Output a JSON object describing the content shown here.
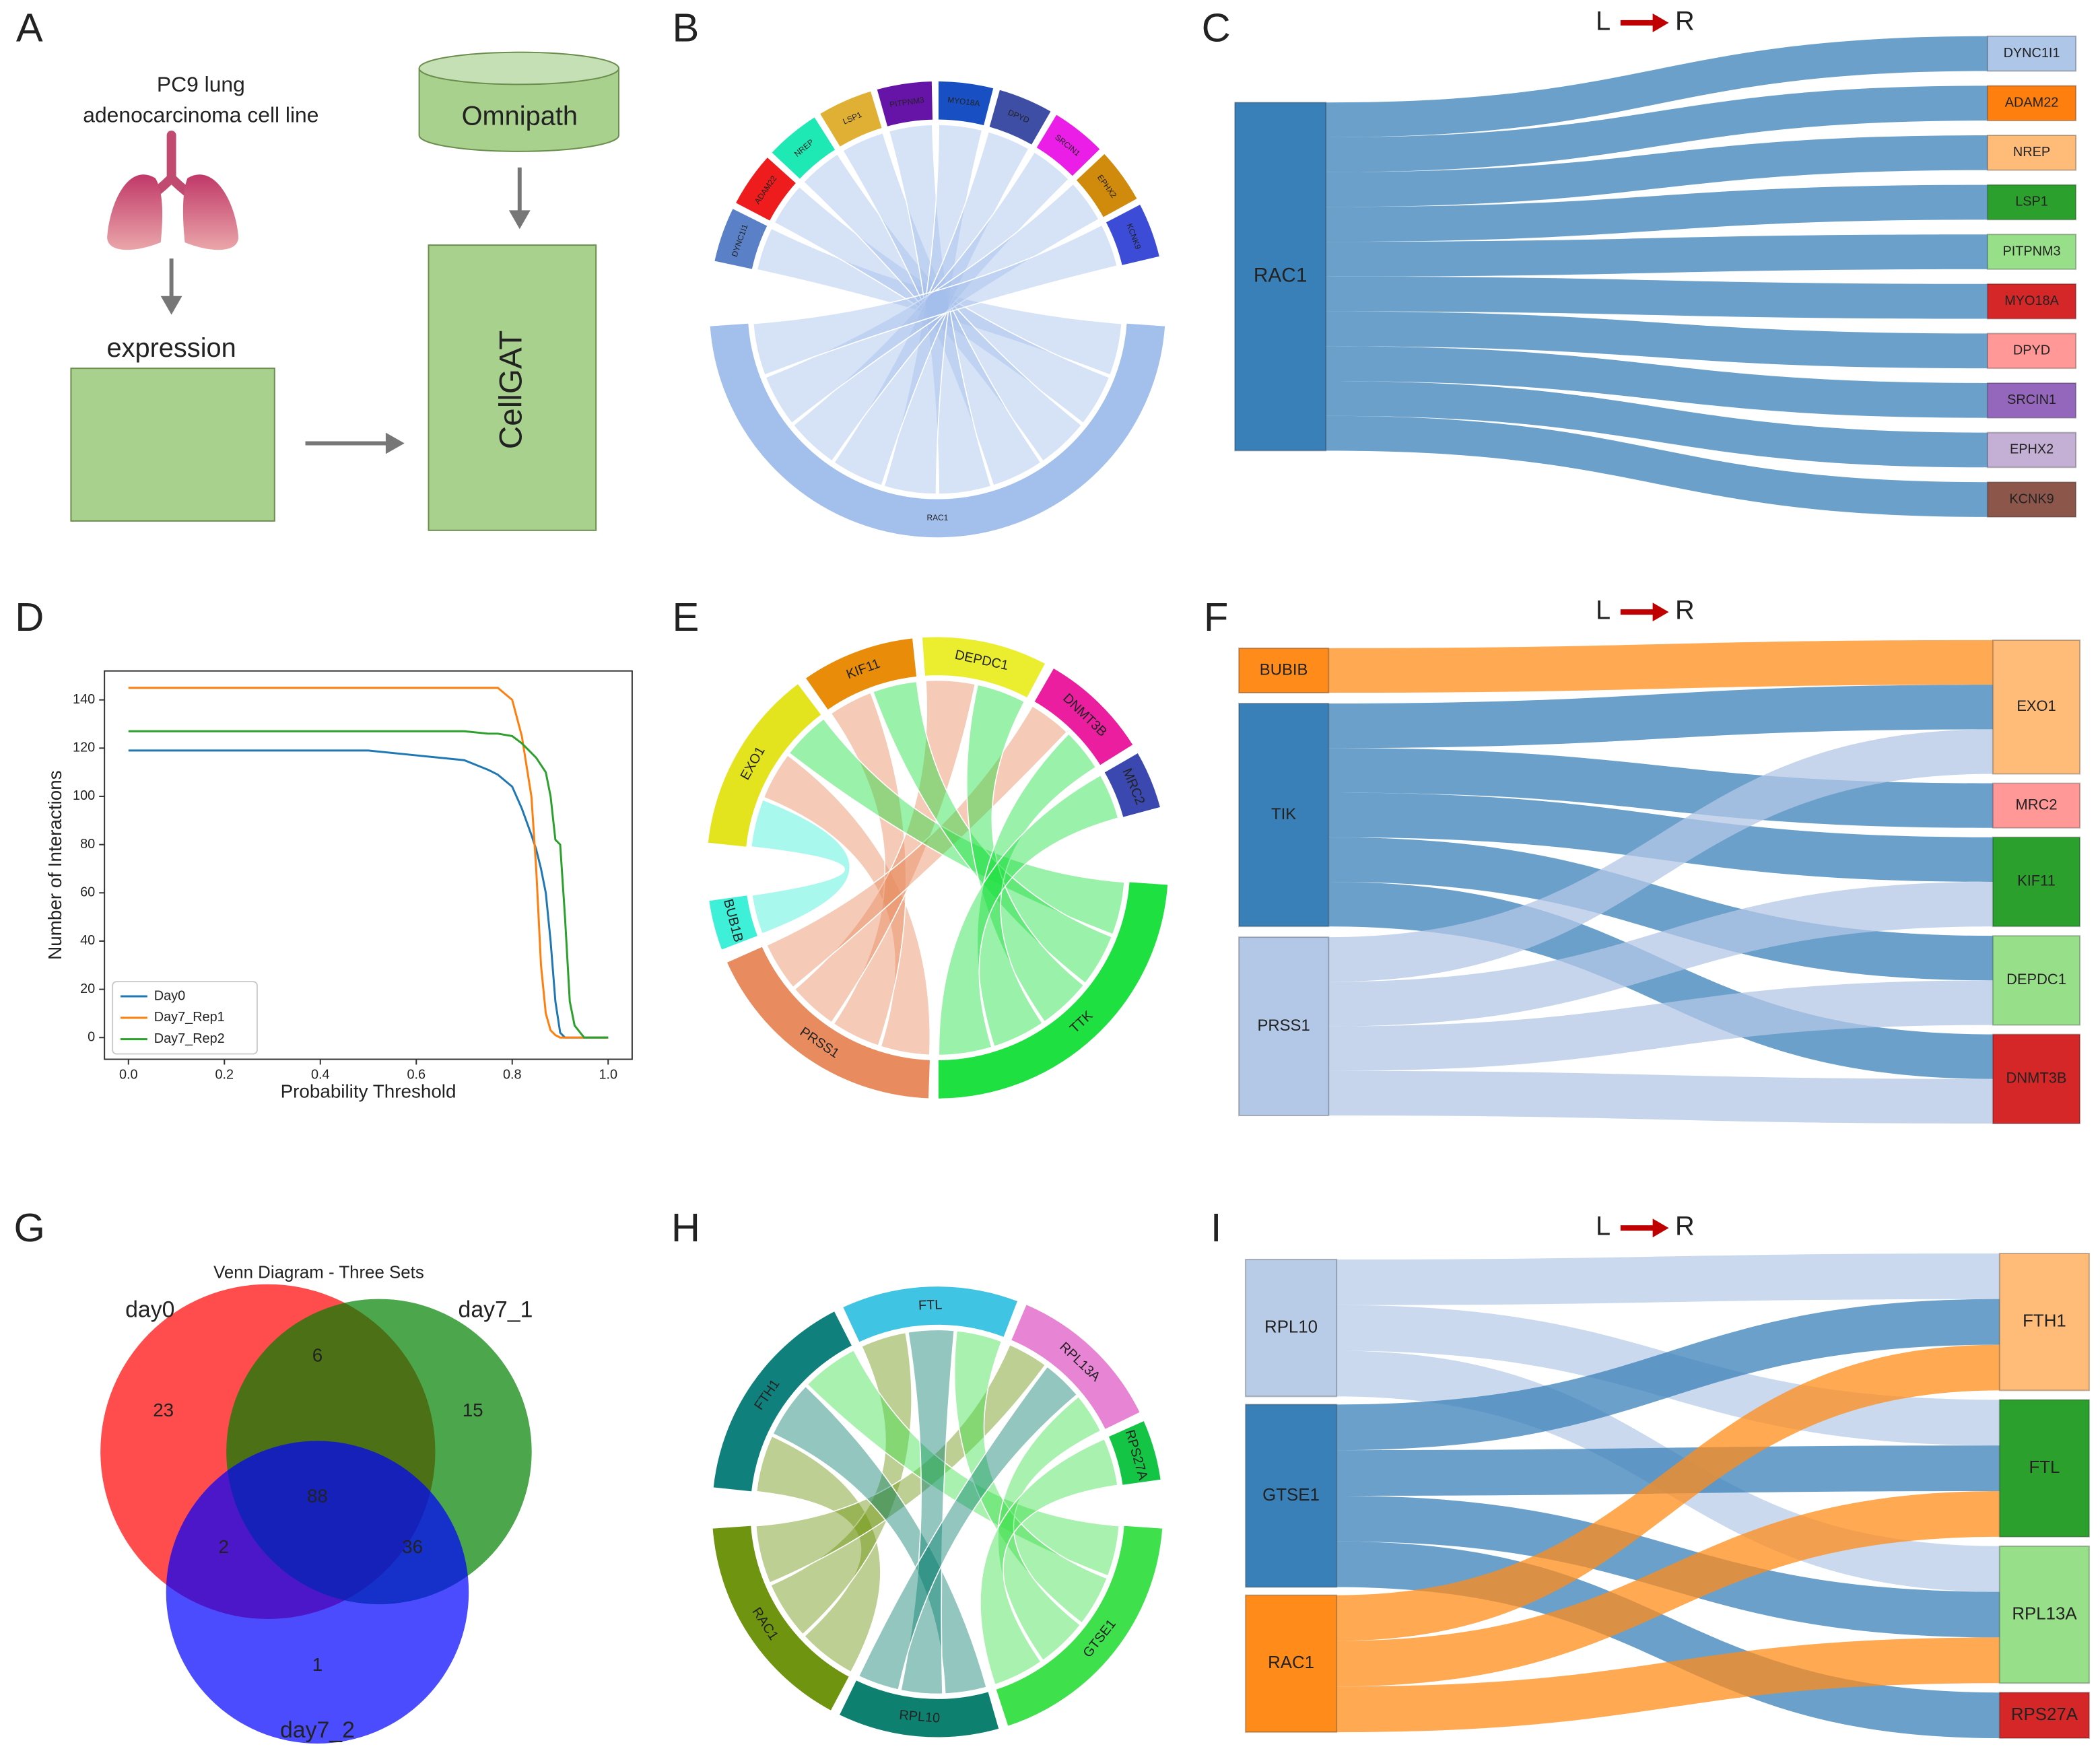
{
  "panel_labels": [
    "A",
    "B",
    "C",
    "D",
    "E",
    "F",
    "G",
    "H",
    "I"
  ],
  "workflow": {
    "cell_line": [
      "PC9 lung",
      "adenocarcinoma cell line"
    ],
    "expression_label": "expression",
    "database": "Omnipath",
    "model": "CellGAT"
  },
  "direction": {
    "left": "L",
    "right": "R"
  },
  "chart_data": [
    {
      "type": "chord",
      "nodes": [
        {
          "name": "RAC1",
          "color": "#a3bfec"
        },
        {
          "name": "DYNC1I1",
          "color": "#5a80c8"
        },
        {
          "name": "ADAM22",
          "color": "#ee1c1c"
        },
        {
          "name": "NREP",
          "color": "#1ee8b4"
        },
        {
          "name": "LSP1",
          "color": "#e0b034"
        },
        {
          "name": "PITPNM3",
          "color": "#6614a8"
        },
        {
          "name": "MYO18A",
          "color": "#1850c4"
        },
        {
          "name": "DPYD",
          "color": "#3e4ea4"
        },
        {
          "name": "SRCIN1",
          "color": "#ea1ee6"
        },
        {
          "name": "EPHX2",
          "color": "#d08a0c"
        },
        {
          "name": "KCNK9",
          "color": "#3c4cd6"
        }
      ],
      "links": [
        {
          "source": "RAC1",
          "target": "DYNC1I1"
        },
        {
          "source": "RAC1",
          "target": "ADAM22"
        },
        {
          "source": "RAC1",
          "target": "NREP"
        },
        {
          "source": "RAC1",
          "target": "LSP1"
        },
        {
          "source": "RAC1",
          "target": "PITPNM3"
        },
        {
          "source": "RAC1",
          "target": "MYO18A"
        },
        {
          "source": "RAC1",
          "target": "DPYD"
        },
        {
          "source": "RAC1",
          "target": "SRCIN1"
        },
        {
          "source": "RAC1",
          "target": "EPHX2"
        },
        {
          "source": "RAC1",
          "target": "KCNK9"
        }
      ]
    },
    {
      "type": "sankey",
      "nodes": [
        {
          "name": "RAC1",
          "color": "#3a80b8"
        },
        {
          "name": "DYNC1I1",
          "color": "#aec7e8"
        },
        {
          "name": "ADAM22",
          "color": "#ff7f0e"
        },
        {
          "name": "NREP",
          "color": "#ffbb78"
        },
        {
          "name": "LSP1",
          "color": "#2ca02c"
        },
        {
          "name": "PITPNM3",
          "color": "#98df8a"
        },
        {
          "name": "MYO18A",
          "color": "#d62728"
        },
        {
          "name": "DPYD",
          "color": "#ff9896"
        },
        {
          "name": "SRCIN1",
          "color": "#9467bd"
        },
        {
          "name": "EPHX2",
          "color": "#c5b0d5"
        },
        {
          "name": "KCNK9",
          "color": "#8c564b"
        }
      ],
      "links": [
        {
          "source": "RAC1",
          "target": "DYNC1I1"
        },
        {
          "source": "RAC1",
          "target": "ADAM22"
        },
        {
          "source": "RAC1",
          "target": "NREP"
        },
        {
          "source": "RAC1",
          "target": "LSP1"
        },
        {
          "source": "RAC1",
          "target": "PITPNM3"
        },
        {
          "source": "RAC1",
          "target": "MYO18A"
        },
        {
          "source": "RAC1",
          "target": "DPYD"
        },
        {
          "source": "RAC1",
          "target": "SRCIN1"
        },
        {
          "source": "RAC1",
          "target": "EPHX2"
        },
        {
          "source": "RAC1",
          "target": "KCNK9"
        }
      ]
    },
    {
      "type": "line",
      "x_label": "Probability Threshold",
      "y_label": "Number of Interactions",
      "x": [
        0,
        0.5,
        0.6,
        0.7,
        0.75,
        0.77,
        0.8,
        0.82,
        0.84,
        0.85,
        0.86,
        0.87,
        0.88,
        0.89,
        0.9,
        0.91,
        0.92,
        0.93,
        0.95,
        1.0
      ],
      "series": [
        {
          "name": "Day0",
          "color": "#1f77b4",
          "values": [
            119,
            119,
            117,
            115,
            111,
            109,
            104,
            95,
            84,
            78,
            70,
            60,
            40,
            15,
            2,
            0,
            0,
            0,
            0,
            0
          ]
        },
        {
          "name": "Day7_Rep1",
          "color": "#ff7f0e",
          "values": [
            145,
            145,
            145,
            145,
            145,
            145,
            140,
            125,
            100,
            70,
            30,
            10,
            3,
            1,
            0,
            0,
            0,
            0,
            0,
            0
          ]
        },
        {
          "name": "Day7_Rep2",
          "color": "#2ca02c",
          "values": [
            127,
            127,
            127,
            127,
            126,
            126,
            125,
            122,
            118,
            116,
            113,
            110,
            100,
            82,
            80,
            50,
            15,
            5,
            0,
            0
          ]
        }
      ],
      "xlim": [
        -0.05,
        1.05
      ],
      "ylim": [
        -9,
        152
      ],
      "xticks": [
        {
          "value": 0,
          "label": "0.0"
        },
        {
          "value": 0.2,
          "label": "0.2"
        },
        {
          "value": 0.4,
          "label": "0.4"
        },
        {
          "value": 0.6,
          "label": "0.6"
        },
        {
          "value": 0.8,
          "label": "0.8"
        },
        {
          "value": 1,
          "label": "1.0"
        }
      ],
      "yticks": [
        0,
        20,
        40,
        60,
        80,
        100,
        120,
        140
      ],
      "legend": "lower left",
      "grid": false
    },
    {
      "type": "chord",
      "nodes": [
        {
          "name": "EXO1",
          "color": "#e4e41e"
        },
        {
          "name": "KIF11",
          "color": "#e88c0a"
        },
        {
          "name": "DEPDC1",
          "color": "#eaee2e"
        },
        {
          "name": "DNMT3B",
          "color": "#ea1e9e"
        },
        {
          "name": "MRC2",
          "color": "#3a48b0"
        },
        {
          "name": "TTK",
          "color": "#1ee040"
        },
        {
          "name": "PRSS1",
          "color": "#e88c60"
        },
        {
          "name": "BUB1B",
          "color": "#3ef0d8"
        }
      ],
      "links": [
        {
          "source": "PRSS1",
          "target": "EXO1"
        },
        {
          "source": "PRSS1",
          "target": "KIF11"
        },
        {
          "source": "PRSS1",
          "target": "DEPDC1"
        },
        {
          "source": "PRSS1",
          "target": "DNMT3B"
        },
        {
          "source": "TTK",
          "target": "EXO1"
        },
        {
          "source": "TTK",
          "target": "KIF11"
        },
        {
          "source": "TTK",
          "target": "DEPDC1"
        },
        {
          "source": "TTK",
          "target": "DNMT3B"
        },
        {
          "source": "TTK",
          "target": "MRC2"
        },
        {
          "source": "BUB1B",
          "target": "EXO1"
        }
      ]
    },
    {
      "type": "sankey",
      "nodes": [
        {
          "name": "BUBIB",
          "color": "#ff8c1a"
        },
        {
          "name": "TIK",
          "color": "#3a80b8"
        },
        {
          "name": "PRSS1",
          "color": "#b3c7e6"
        },
        {
          "name": "EXO1",
          "color": "#ffbb78"
        },
        {
          "name": "MRC2",
          "color": "#ff9896"
        },
        {
          "name": "KIF11",
          "color": "#2ca02c"
        },
        {
          "name": "DEPDC1",
          "color": "#98df8a"
        },
        {
          "name": "DNMT3B",
          "color": "#d62728"
        }
      ],
      "links": [
        {
          "source": "BUBIB",
          "target": "EXO1"
        },
        {
          "source": "TIK",
          "target": "EXO1"
        },
        {
          "source": "TIK",
          "target": "MRC2"
        },
        {
          "source": "TIK",
          "target": "KIF11"
        },
        {
          "source": "TIK",
          "target": "DEPDC1"
        },
        {
          "source": "TIK",
          "target": "DNMT3B"
        },
        {
          "source": "PRSS1",
          "target": "EXO1"
        },
        {
          "source": "PRSS1",
          "target": "KIF11"
        },
        {
          "source": "PRSS1",
          "target": "DEPDC1"
        },
        {
          "source": "PRSS1",
          "target": "DNMT3B"
        }
      ]
    },
    {
      "type": "venn",
      "title": "Venn Diagram - Three Sets",
      "sets": [
        {
          "name": "day0",
          "color": "#ff0000"
        },
        {
          "name": "day7_1",
          "color": "#008000"
        },
        {
          "name": "day7_2",
          "color": "#0000ff"
        }
      ],
      "values": [
        23,
        6,
        15,
        88,
        2,
        36,
        1
      ]
    },
    {
      "type": "chord",
      "nodes": [
        {
          "name": "FTH1",
          "color": "#10807c"
        },
        {
          "name": "FTL",
          "color": "#40c4e4"
        },
        {
          "name": "RPL13A",
          "color": "#e884d4"
        },
        {
          "name": "RPS27A",
          "color": "#14c444"
        },
        {
          "name": "GTSE1",
          "color": "#3ee04c"
        },
        {
          "name": "RPL10",
          "color": "#0e8070"
        },
        {
          "name": "RAC1",
          "color": "#6e9410"
        }
      ],
      "links": [
        {
          "source": "RAC1",
          "target": "FTH1"
        },
        {
          "source": "RAC1",
          "target": "FTL"
        },
        {
          "source": "RAC1",
          "target": "RPL13A"
        },
        {
          "source": "GTSE1",
          "target": "FTH1"
        },
        {
          "source": "GTSE1",
          "target": "FTL"
        },
        {
          "source": "GTSE1",
          "target": "RPL13A"
        },
        {
          "source": "GTSE1",
          "target": "RPS27A"
        },
        {
          "source": "RPL10",
          "target": "FTH1"
        },
        {
          "source": "RPL10",
          "target": "FTL"
        },
        {
          "source": "RPL10",
          "target": "RPL13A"
        }
      ]
    },
    {
      "type": "sankey",
      "nodes": [
        {
          "name": "RPL10",
          "color": "#b8cce8"
        },
        {
          "name": "GTSE1",
          "color": "#3a80b8"
        },
        {
          "name": "RAC1",
          "color": "#ff8c1a"
        },
        {
          "name": "FTH1",
          "color": "#ffbb78"
        },
        {
          "name": "FTL",
          "color": "#2ca02c"
        },
        {
          "name": "RPL13A",
          "color": "#98df8a"
        },
        {
          "name": "RPS27A",
          "color": "#d62728"
        }
      ],
      "links": [
        {
          "source": "RPL10",
          "target": "FTH1"
        },
        {
          "source": "RPL10",
          "target": "FTL"
        },
        {
          "source": "RPL10",
          "target": "RPL13A"
        },
        {
          "source": "GTSE1",
          "target": "FTH1"
        },
        {
          "source": "GTSE1",
          "target": "FTL"
        },
        {
          "source": "GTSE1",
          "target": "RPL13A"
        },
        {
          "source": "GTSE1",
          "target": "RPS27A"
        },
        {
          "source": "RAC1",
          "target": "FTH1"
        },
        {
          "source": "RAC1",
          "target": "FTL"
        },
        {
          "source": "RAC1",
          "target": "RPL13A"
        }
      ]
    }
  ]
}
